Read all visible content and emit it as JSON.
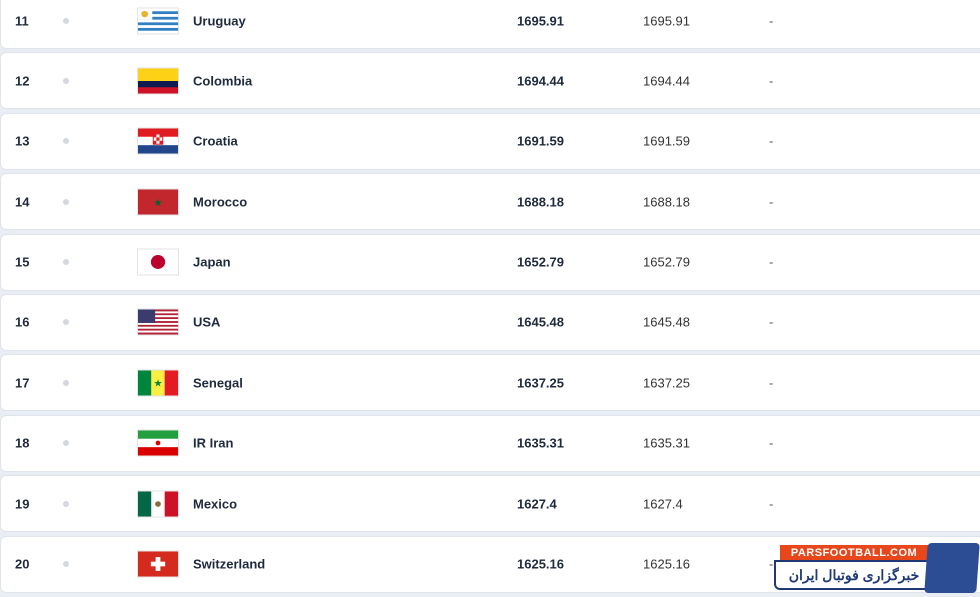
{
  "rows": [
    {
      "rank": "11",
      "country": "Uruguay",
      "flag": "uruguay",
      "points": "1695.91",
      "previous_points": "1695.91",
      "change": "-"
    },
    {
      "rank": "12",
      "country": "Colombia",
      "flag": "colombia",
      "points": "1694.44",
      "previous_points": "1694.44",
      "change": "-"
    },
    {
      "rank": "13",
      "country": "Croatia",
      "flag": "croatia",
      "points": "1691.59",
      "previous_points": "1691.59",
      "change": "-"
    },
    {
      "rank": "14",
      "country": "Morocco",
      "flag": "morocco",
      "points": "1688.18",
      "previous_points": "1688.18",
      "change": "-"
    },
    {
      "rank": "15",
      "country": "Japan",
      "flag": "japan",
      "points": "1652.79",
      "previous_points": "1652.79",
      "change": "-"
    },
    {
      "rank": "16",
      "country": "USA",
      "flag": "usa",
      "points": "1645.48",
      "previous_points": "1645.48",
      "change": "-"
    },
    {
      "rank": "17",
      "country": "Senegal",
      "flag": "senegal",
      "points": "1637.25",
      "previous_points": "1637.25",
      "change": "-"
    },
    {
      "rank": "18",
      "country": "IR Iran",
      "flag": "iran",
      "points": "1635.31",
      "previous_points": "1635.31",
      "change": "-"
    },
    {
      "rank": "19",
      "country": "Mexico",
      "flag": "mexico",
      "points": "1627.4",
      "previous_points": "1627.4",
      "change": "-"
    },
    {
      "rank": "20",
      "country": "Switzerland",
      "flag": "switzerland",
      "points": "1625.16",
      "previous_points": "1625.16",
      "change": "-"
    }
  ],
  "watermark": {
    "site": "PARSFOOTBALL.COM",
    "tagline": "خبرگزاری فوتبال ایران"
  }
}
